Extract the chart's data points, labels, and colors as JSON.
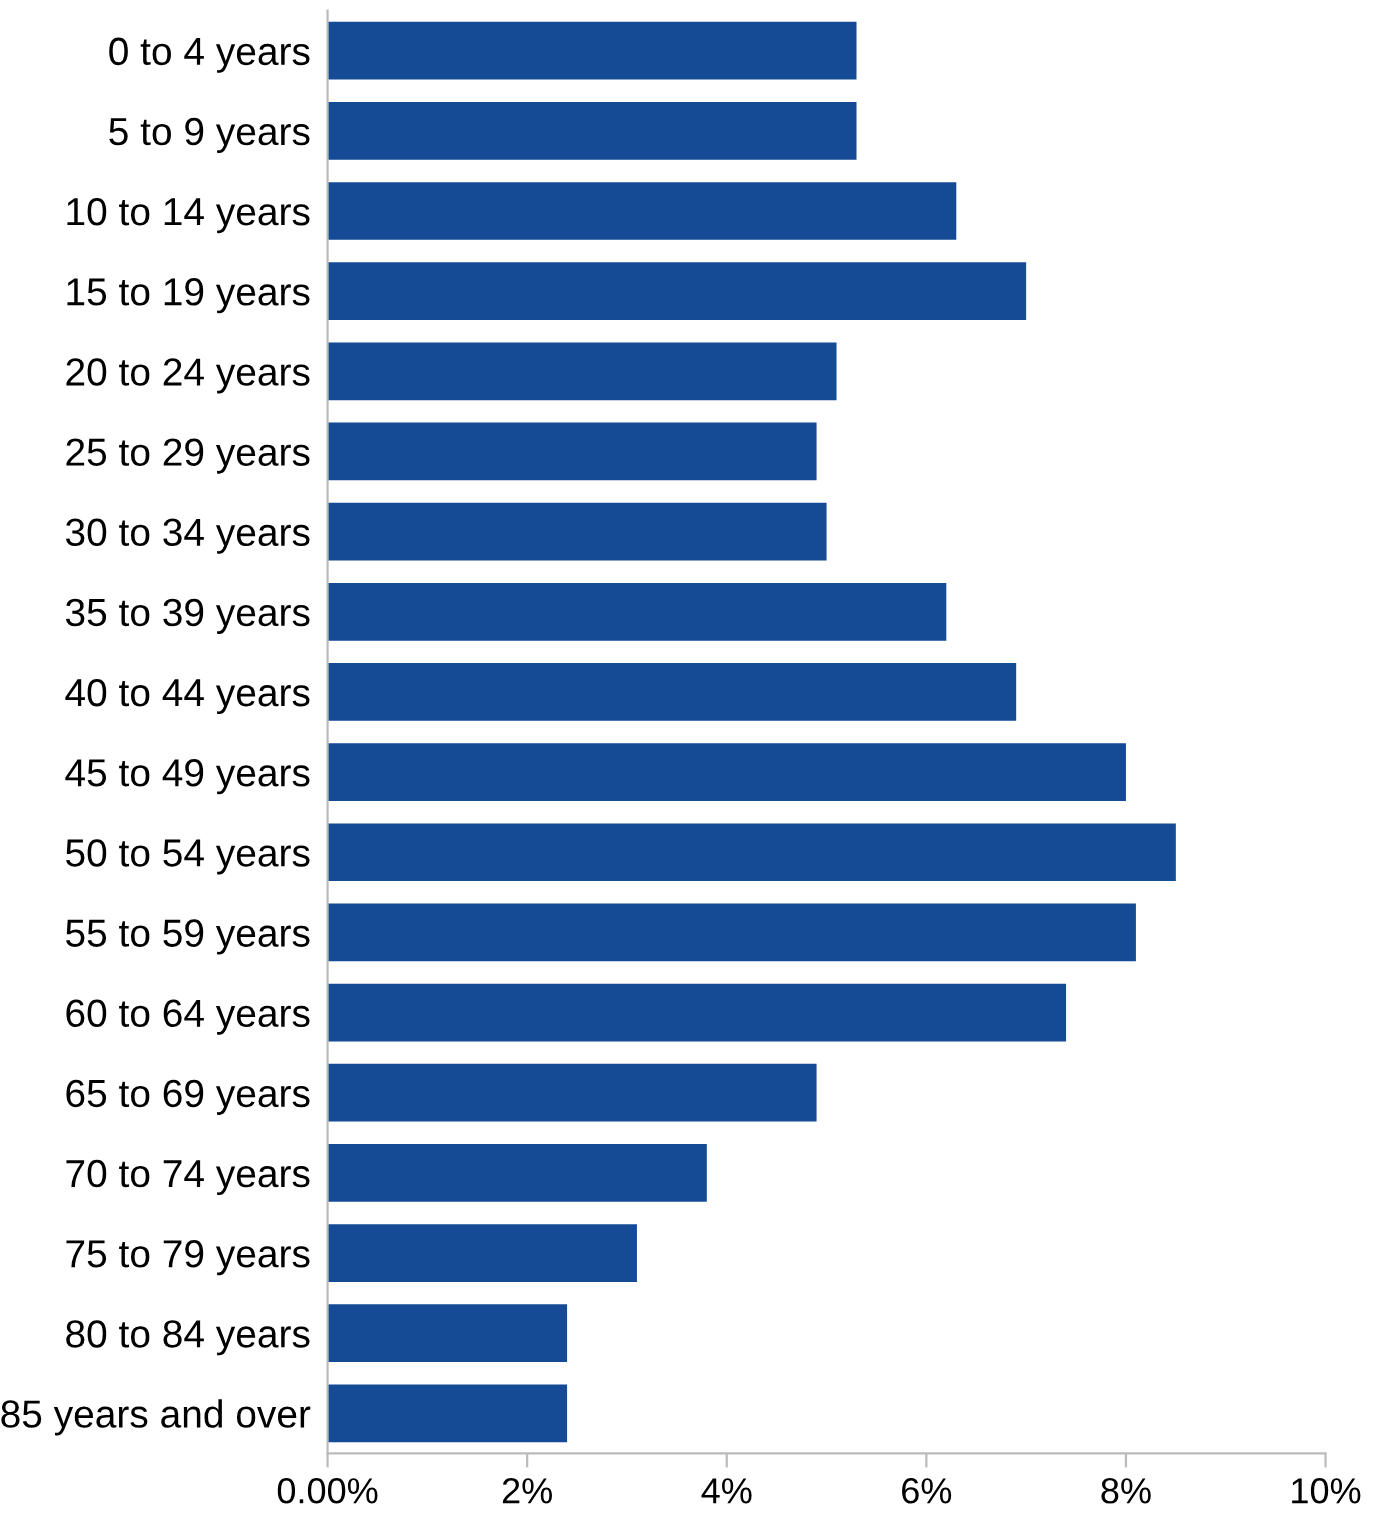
{
  "chart_data": {
    "type": "bar",
    "orientation": "horizontal",
    "categories": [
      "0 to 4 years",
      "5 to 9 years",
      "10 to 14 years",
      "15 to 19 years",
      "20 to 24 years",
      "25 to 29 years",
      "30 to 34 years",
      "35 to 39 years",
      "40 to 44 years",
      "45 to 49 years",
      "50 to 54 years",
      "55 to 59 years",
      "60 to 64 years",
      "65 to 69 years",
      "70 to 74 years",
      "75 to 79 years",
      "80 to 84 years",
      "85 years and over"
    ],
    "values": [
      5.3,
      5.3,
      6.3,
      7.0,
      5.1,
      4.9,
      5.0,
      6.2,
      6.9,
      8.0,
      8.5,
      8.1,
      7.4,
      4.9,
      3.8,
      3.1,
      2.4,
      2.4
    ],
    "color": "#154a94",
    "xlim": [
      0,
      10
    ],
    "xticks": [
      {
        "value": 0,
        "label": "0.00%"
      },
      {
        "value": 2,
        "label": "2%"
      },
      {
        "value": 4,
        "label": "4%"
      },
      {
        "value": 6,
        "label": "6%"
      },
      {
        "value": 8,
        "label": "8%"
      },
      {
        "value": 10,
        "label": "10%"
      }
    ],
    "grid": false,
    "legend": false
  }
}
